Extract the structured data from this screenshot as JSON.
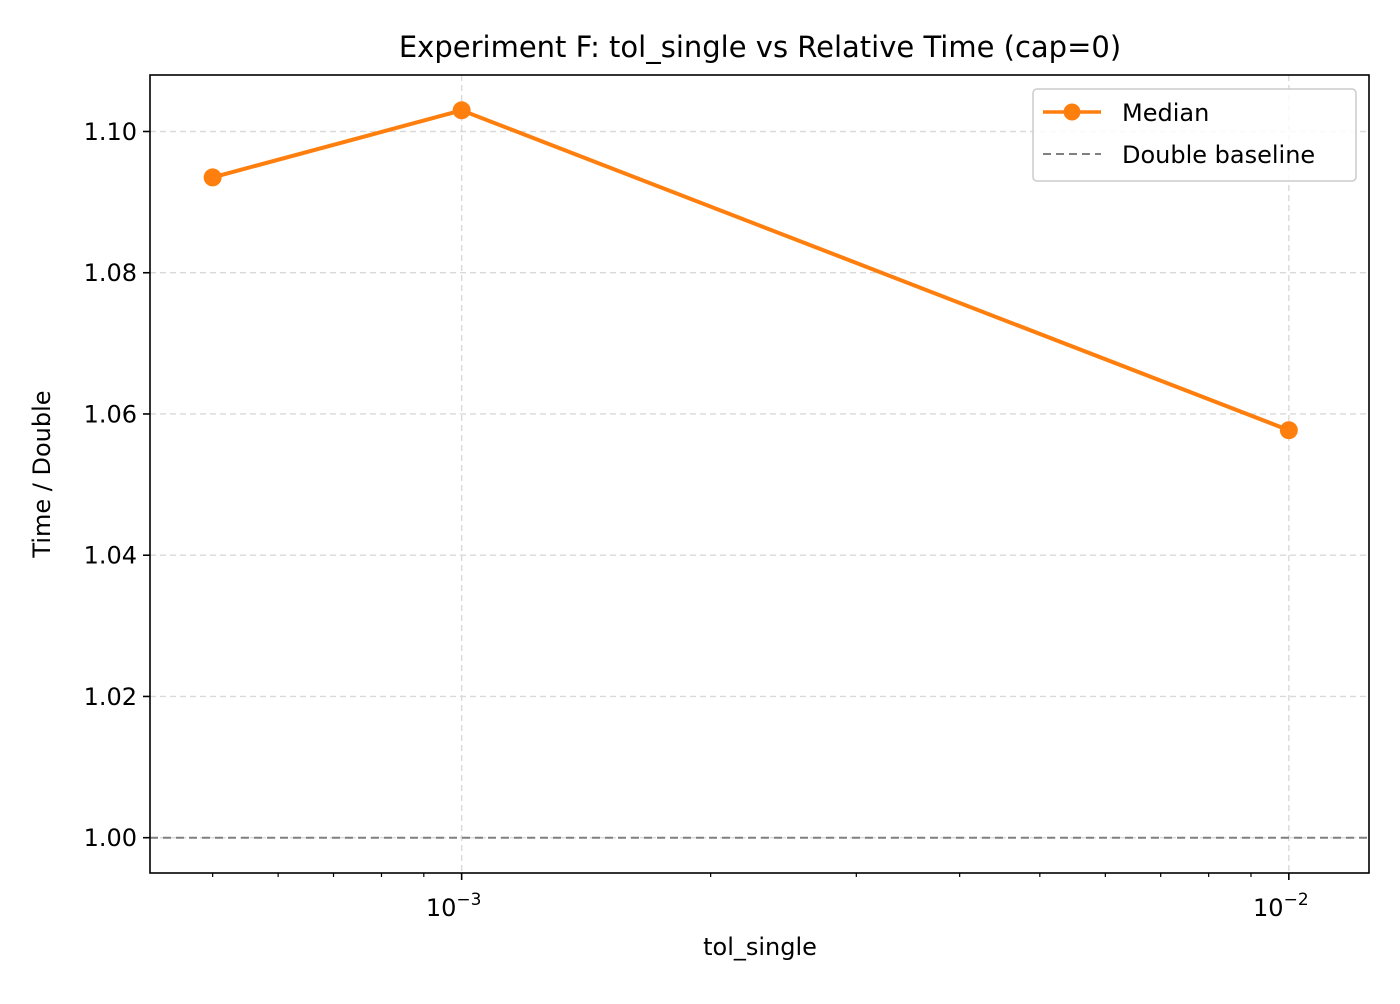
{
  "chart_data": {
    "type": "line",
    "title": "Experiment F: tol_single vs Relative Time (cap=0)",
    "xlabel": "tol_single",
    "ylabel": "Time / Double",
    "xscale": "log",
    "xlim": [
      0.00042,
      0.0125
    ],
    "ylim": [
      0.995,
      1.108
    ],
    "x_ticks": [
      {
        "value": 0.001,
        "base": "10",
        "exp": "−3"
      },
      {
        "value": 0.01,
        "base": "10",
        "exp": "−2"
      }
    ],
    "y_ticks": [
      {
        "value": 1.0,
        "label": "1.00"
      },
      {
        "value": 1.02,
        "label": "1.02"
      },
      {
        "value": 1.04,
        "label": "1.04"
      },
      {
        "value": 1.06,
        "label": "1.06"
      },
      {
        "value": 1.08,
        "label": "1.08"
      },
      {
        "value": 1.1,
        "label": "1.10"
      }
    ],
    "grid": true,
    "legend_position": "top-right",
    "series": [
      {
        "name": "Median",
        "color": "#ff7f0e",
        "style": "solid-with-markers",
        "x": [
          0.0005,
          0.001,
          0.01
        ],
        "y": [
          1.0935,
          1.103,
          1.0577
        ]
      },
      {
        "name": "Double baseline",
        "color": "#808080",
        "style": "dashed-horizontal",
        "y": 1.0
      }
    ]
  }
}
